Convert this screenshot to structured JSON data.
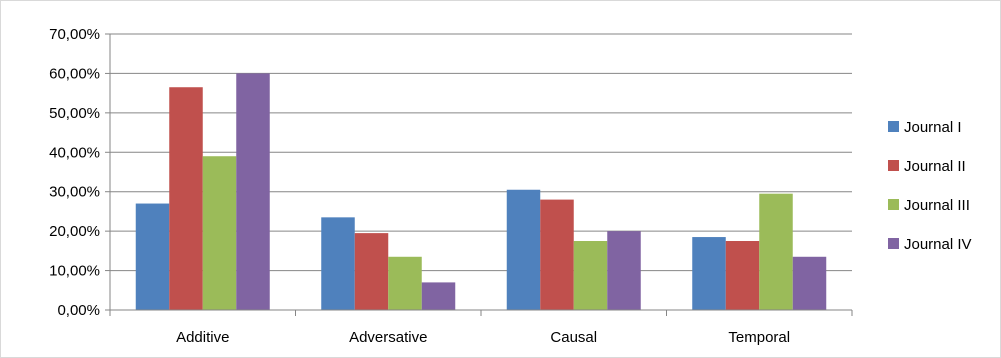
{
  "chart_data": {
    "type": "bar",
    "categories": [
      "Additive",
      "Adversative",
      "Causal",
      "Temporal"
    ],
    "series": [
      {
        "name": "Journal I",
        "color": "#4F81BD",
        "values": [
          27.0,
          23.5,
          30.5,
          18.5
        ]
      },
      {
        "name": "Journal II",
        "color": "#C0504D",
        "values": [
          56.5,
          19.5,
          28.0,
          17.5
        ]
      },
      {
        "name": "Journal III",
        "color": "#9BBB59",
        "values": [
          39.0,
          13.5,
          17.5,
          29.5
        ]
      },
      {
        "name": "Journal IV",
        "color": "#8064A2",
        "values": [
          60.0,
          7.0,
          20.0,
          13.5
        ]
      }
    ],
    "yticks": [
      "0,00%",
      "10,00%",
      "20,00%",
      "30,00%",
      "40,00%",
      "50,00%",
      "60,00%",
      "70,00%"
    ],
    "ylim": [
      0,
      70
    ],
    "grid": true,
    "legend_position": "right"
  }
}
